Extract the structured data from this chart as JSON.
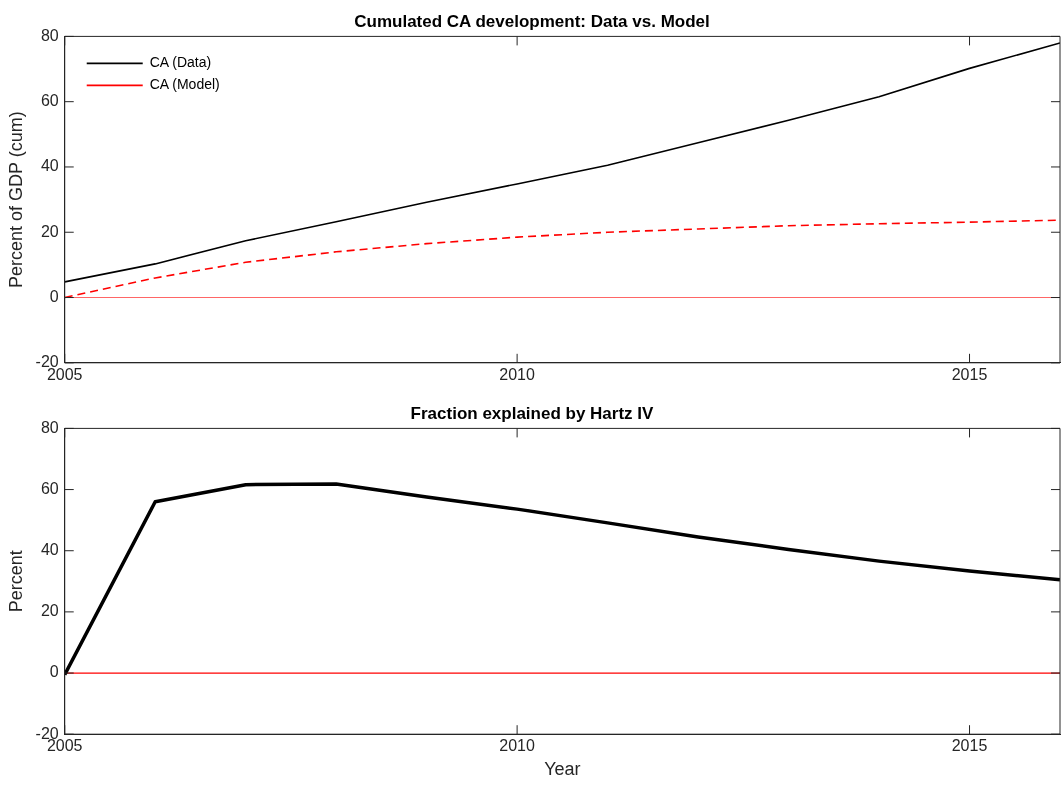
{
  "chart_data": [
    {
      "type": "line",
      "title": "Cumulated CA development: Data vs. Model",
      "ylabel": "Percent of GDP (cum)",
      "x": [
        2005,
        2006,
        2007,
        2008,
        2009,
        2010,
        2011,
        2012,
        2013,
        2014,
        2015,
        2016
      ],
      "series": [
        {
          "name": "CA (Data)",
          "color": "#000000",
          "line_style": "solid",
          "values": [
            4.8,
            10.3,
            17.4,
            23.2,
            29.2,
            34.8,
            40.5,
            47.4,
            54.3,
            61.5,
            70.2,
            78
          ]
        },
        {
          "name": "CA (Model)",
          "color": "#ff0000",
          "line_style": "dashed",
          "values": [
            0,
            6,
            10.8,
            14,
            16.5,
            18.5,
            20,
            21,
            22,
            22.6,
            23.1,
            23.7
          ]
        }
      ],
      "xlim": [
        2005,
        2016
      ],
      "xticks": [
        2005,
        2010,
        2015
      ],
      "ylim": [
        -20,
        80
      ],
      "yticks": [
        -20,
        0,
        20,
        40,
        60,
        80
      ],
      "ref_lines": [
        {
          "axis": "y",
          "value": 0,
          "color": "#ff6666"
        }
      ],
      "legend": "top left",
      "grid": false,
      "marker": "none"
    },
    {
      "type": "line",
      "title": "Fraction explained by Hartz IV",
      "xlabel": "Year",
      "ylabel": "Percent",
      "x": [
        2005,
        2006,
        2007,
        2008,
        2009,
        2010,
        2011,
        2012,
        2013,
        2014,
        2015,
        2016
      ],
      "series": [
        {
          "color": "#000000",
          "values": [
            -0.5,
            56,
            61.6,
            61.8,
            57.6,
            53.6,
            49.1,
            44.5,
            40.4,
            36.6,
            33.4,
            30.5
          ]
        }
      ],
      "xlim": [
        2005,
        2016
      ],
      "xticks": [
        2005,
        2010,
        2015
      ],
      "ylim": [
        -20,
        80
      ],
      "yticks": [
        -20,
        0,
        20,
        40,
        60,
        80
      ],
      "ref_lines": [
        {
          "axis": "y",
          "value": 0,
          "color": "#ff0000"
        }
      ],
      "legend": false,
      "grid": false,
      "marker": "none"
    }
  ]
}
